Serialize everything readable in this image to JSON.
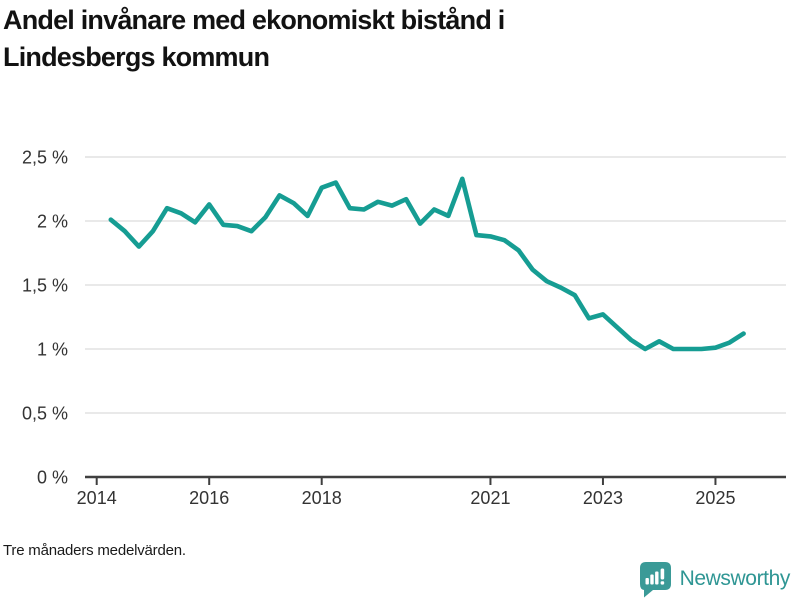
{
  "header": {
    "title_line1": "Andel invånare med ekonomiskt bistånd i",
    "title_line2": "Lindesbergs kommun"
  },
  "footer": {
    "note": "Tre månaders medelvärden.",
    "brand": "Newsworthy"
  },
  "colors": {
    "line": "#169d93",
    "grid": "#dcdcdc",
    "axis": "#3f3f3f",
    "tick_label": "#333333",
    "brand_text": "#2f9694",
    "brand_badge": "#3a9a97"
  },
  "chart_data": {
    "type": "line",
    "title": "Andel invånare med ekonomiskt bistånd i Lindesbergs kommun",
    "note": "Tre månaders medelvärden.",
    "unit": "%",
    "xlim": [
      2013.79,
      2026.23
    ],
    "ylim": [
      0,
      2.55
    ],
    "grid": "horizontal",
    "legend_position": "none",
    "x_ticks": [
      {
        "label": "2014",
        "t": 2014
      },
      {
        "label": "2016",
        "t": 2016
      },
      {
        "label": "2018",
        "t": 2018
      },
      {
        "label": "2021",
        "t": 2021
      },
      {
        "label": "2023",
        "t": 2023
      },
      {
        "label": "2025",
        "t": 2025
      }
    ],
    "y_ticks": [
      {
        "label": "2,5 %",
        "v": 2.5
      },
      {
        "label": "2 %",
        "v": 2.0
      },
      {
        "label": "1,5 %",
        "v": 1.5
      },
      {
        "label": "1 %",
        "v": 1.0
      },
      {
        "label": "0,5 %",
        "v": 0.5
      },
      {
        "label": "0 %",
        "v": 0.0
      }
    ],
    "series": [
      {
        "name": "Lindesbergs kommun",
        "color": "#169d93",
        "points": [
          [
            2014.25,
            2.01
          ],
          [
            2014.5,
            1.92
          ],
          [
            2014.75,
            1.8
          ],
          [
            2015.0,
            1.92
          ],
          [
            2015.25,
            2.1
          ],
          [
            2015.5,
            2.06
          ],
          [
            2015.75,
            1.99
          ],
          [
            2016.0,
            2.13
          ],
          [
            2016.25,
            1.97
          ],
          [
            2016.5,
            1.96
          ],
          [
            2016.75,
            1.92
          ],
          [
            2017.0,
            2.03
          ],
          [
            2017.25,
            2.2
          ],
          [
            2017.5,
            2.14
          ],
          [
            2017.75,
            2.04
          ],
          [
            2018.0,
            2.26
          ],
          [
            2018.25,
            2.3
          ],
          [
            2018.5,
            2.1
          ],
          [
            2018.75,
            2.09
          ],
          [
            2019.0,
            2.15
          ],
          [
            2019.25,
            2.12
          ],
          [
            2019.5,
            2.17
          ],
          [
            2019.75,
            1.98
          ],
          [
            2020.0,
            2.09
          ],
          [
            2020.25,
            2.04
          ],
          [
            2020.5,
            2.33
          ],
          [
            2020.75,
            1.89
          ],
          [
            2021.0,
            1.88
          ],
          [
            2021.25,
            1.85
          ],
          [
            2021.5,
            1.77
          ],
          [
            2021.75,
            1.62
          ],
          [
            2022.0,
            1.53
          ],
          [
            2022.25,
            1.48
          ],
          [
            2022.5,
            1.42
          ],
          [
            2022.75,
            1.24
          ],
          [
            2023.0,
            1.27
          ],
          [
            2023.25,
            1.17
          ],
          [
            2023.5,
            1.07
          ],
          [
            2023.75,
            1.0
          ],
          [
            2024.0,
            1.06
          ],
          [
            2024.25,
            1.0
          ],
          [
            2024.5,
            1.0
          ],
          [
            2024.75,
            1.0
          ],
          [
            2025.0,
            1.01
          ],
          [
            2025.25,
            1.05
          ],
          [
            2025.5,
            1.12
          ]
        ]
      }
    ]
  }
}
